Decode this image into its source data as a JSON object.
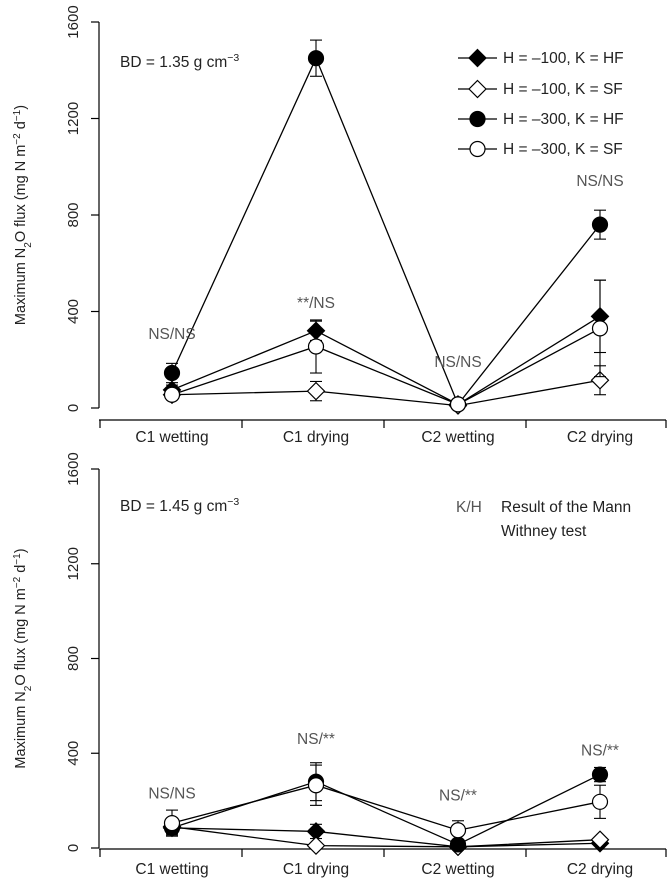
{
  "chart_data": [
    {
      "type": "line",
      "panel": "top",
      "annotation": {
        "prefix": "BD = 1.35 g cm",
        "sup": "−3"
      },
      "ylabel": {
        "pre": "Maximum N",
        "sub": "2",
        "mid": "O flux (mg N m",
        "sup1": "−2",
        "mid2": " d",
        "sup2": "−1",
        "post": ")"
      },
      "ylim": [
        0,
        1600
      ],
      "yticks": [
        "0",
        "400",
        "800",
        "1200",
        "1600"
      ],
      "categories": [
        "C1 wetting",
        "C1 drying",
        "C2 wetting",
        "C2 drying"
      ],
      "series": [
        {
          "name": "H = –100, K = HF",
          "marker": "diamond",
          "filled": true,
          "values": [
            75,
            320,
            15,
            380
          ],
          "err": [
            20,
            40,
            8,
            150
          ]
        },
        {
          "name": "H = –100, K = SF",
          "marker": "diamond",
          "filled": false,
          "values": [
            55,
            70,
            10,
            115
          ],
          "err": [
            15,
            40,
            5,
            60
          ]
        },
        {
          "name": "H = –300, K = HF",
          "marker": "circle",
          "filled": true,
          "values": [
            145,
            1450,
            15,
            760
          ],
          "err": [
            40,
            75,
            8,
            60
          ]
        },
        {
          "name": "H = –300, K = SF",
          "marker": "circle",
          "filled": false,
          "values": [
            55,
            255,
            15,
            330
          ],
          "err": [
            20,
            110,
            8,
            200
          ]
        }
      ],
      "stat_labels": [
        {
          "category": "C1 wetting",
          "text": "NS/NS",
          "y": 285
        },
        {
          "category": "C1 drying",
          "text": "**/NS",
          "y": 415
        },
        {
          "category": "C2 wetting",
          "text": "NS/NS",
          "y": 170
        },
        {
          "category": "C2 drying",
          "text": "NS/NS",
          "y": 920
        }
      ],
      "legend": "top-right"
    },
    {
      "type": "line",
      "panel": "bottom",
      "annotation": {
        "prefix": "BD = 1.45 g cm",
        "sup": "−3"
      },
      "ylabel": {
        "pre": "Maximum N",
        "sub": "2",
        "mid": "O flux (mg N m",
        "sup1": "−2",
        "mid2": " d",
        "sup2": "−1",
        "post": ")"
      },
      "ylim": [
        0,
        1600
      ],
      "yticks": [
        "0",
        "400",
        "800",
        "1200",
        "1600"
      ],
      "categories": [
        "C1 wetting",
        "C1 drying",
        "C2 wetting",
        "C2 drying"
      ],
      "series": [
        {
          "name": "H = –100, K = HF",
          "marker": "diamond",
          "filled": true,
          "values": [
            85,
            70,
            5,
            20
          ],
          "err": [
            25,
            30,
            5,
            5
          ]
        },
        {
          "name": "H = –100, K = SF",
          "marker": "diamond",
          "filled": false,
          "values": [
            90,
            10,
            5,
            35
          ],
          "err": [
            25,
            5,
            5,
            10
          ]
        },
        {
          "name": "H = –300, K = HF",
          "marker": "circle",
          "filled": true,
          "values": [
            85,
            280,
            15,
            310
          ],
          "err": [
            30,
            80,
            10,
            30
          ]
        },
        {
          "name": "H = –300, K = SF",
          "marker": "circle",
          "filled": false,
          "values": [
            105,
            265,
            75,
            195
          ],
          "err": [
            55,
            85,
            40,
            70
          ]
        }
      ],
      "stat_labels": [
        {
          "category": "C1 wetting",
          "text": "NS/NS",
          "y": 210
        },
        {
          "category": "C1 drying",
          "text": "NS/**",
          "y": 440
        },
        {
          "category": "C2 wetting",
          "text": "NS/**",
          "y": 200
        },
        {
          "category": "C2 drying",
          "text": "NS/**",
          "y": 390
        }
      ],
      "key_note": {
        "key": "K/H",
        "line1": "Result of the Mann",
        "line2": "Withney test"
      }
    }
  ]
}
